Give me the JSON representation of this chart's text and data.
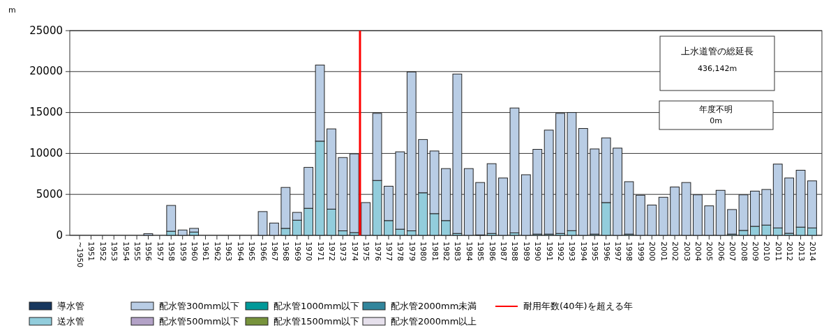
{
  "chart_data": {
    "type": "bar",
    "stacked": true,
    "ylabel": "m",
    "categories": [
      "~1950",
      "1951",
      "1952",
      "1953",
      "1954",
      "1955",
      "1956",
      "1957",
      "1958",
      "1959",
      "1960",
      "1961",
      "1962",
      "1963",
      "1964",
      "1965",
      "1966",
      "1967",
      "1968",
      "1969",
      "1970",
      "1971",
      "1972",
      "1973",
      "1974",
      "1975",
      "1976",
      "1977",
      "1978",
      "1979",
      "1980",
      "1981",
      "1982",
      "1983",
      "1984",
      "1985",
      "1986",
      "1987",
      "1988",
      "1989",
      "1990",
      "1991",
      "1992",
      "1993",
      "1994",
      "1995",
      "1996",
      "1997",
      "1998",
      "1999",
      "2000",
      "2001",
      "2002",
      "2003",
      "2004",
      "2005",
      "2006",
      "2007",
      "2008",
      "2009",
      "2010",
      "2011",
      "2012",
      "2013",
      "2014"
    ],
    "series": [
      {
        "name": "導水管",
        "color": "#17375e",
        "values": [
          0,
          0,
          0,
          0,
          0,
          0,
          0,
          0,
          0,
          0,
          0,
          0,
          0,
          0,
          0,
          0,
          0,
          0,
          0,
          0,
          0,
          0,
          0,
          0,
          0,
          0,
          0,
          0,
          0,
          0,
          0,
          0,
          0,
          0,
          0,
          0,
          0,
          0,
          0,
          0,
          0,
          0,
          0,
          0,
          0,
          0,
          0,
          0,
          0,
          0,
          0,
          0,
          0,
          0,
          0,
          0,
          0,
          0,
          0,
          0,
          0,
          0,
          0,
          0,
          0
        ]
      },
      {
        "name": "送水管",
        "color": "#92cddc",
        "values": [
          0,
          0,
          0,
          0,
          0,
          0,
          0,
          0,
          500,
          0,
          400,
          0,
          0,
          0,
          0,
          0,
          0,
          0,
          850,
          1850,
          3300,
          11500,
          3200,
          550,
          330,
          0,
          6700,
          1800,
          750,
          550,
          5200,
          2650,
          1800,
          230,
          0,
          50,
          230,
          0,
          300,
          0,
          150,
          150,
          230,
          570,
          0,
          150,
          4000,
          0,
          150,
          0,
          0,
          0,
          0,
          0,
          0,
          0,
          0,
          150,
          600,
          1100,
          1250,
          900,
          250,
          1000,
          900
        ]
      },
      {
        "name": "配水管300mm以下",
        "color": "#b9cde5",
        "values": [
          0,
          0,
          0,
          0,
          0,
          0,
          200,
          0,
          3150,
          650,
          450,
          0,
          0,
          0,
          0,
          0,
          2900,
          1500,
          5000,
          950,
          5000,
          9300,
          9800,
          8950,
          9620,
          4000,
          8200,
          4200,
          9450,
          19400,
          6500,
          7650,
          6350,
          19470,
          8150,
          6400,
          8520,
          7000,
          15250,
          7400,
          10350,
          12700,
          14670,
          14430,
          13050,
          10400,
          7900,
          10650,
          6400,
          4900,
          3700,
          4650,
          5900,
          6450,
          4950,
          3600,
          5500,
          3000,
          4350,
          4300,
          4350,
          7800,
          6750,
          6950,
          5750
        ]
      },
      {
        "name": "配水管500mm以下",
        "color": "#b3a2c7",
        "values": [
          0,
          0,
          0,
          0,
          0,
          0,
          0,
          0,
          0,
          0,
          0,
          0,
          0,
          0,
          0,
          0,
          0,
          0,
          0,
          0,
          0,
          0,
          0,
          0,
          0,
          0,
          0,
          0,
          0,
          0,
          0,
          0,
          0,
          0,
          0,
          0,
          0,
          0,
          0,
          0,
          0,
          0,
          0,
          0,
          0,
          0,
          0,
          0,
          0,
          0,
          0,
          0,
          0,
          0,
          0,
          0,
          0,
          0,
          0,
          0,
          0,
          0,
          0,
          0,
          0
        ]
      },
      {
        "name": "配水管1000mm以下",
        "color": "#009999",
        "values": [
          0,
          0,
          0,
          0,
          0,
          0,
          0,
          0,
          0,
          0,
          0,
          0,
          0,
          0,
          0,
          0,
          0,
          0,
          0,
          0,
          0,
          0,
          0,
          0,
          0,
          0,
          0,
          0,
          0,
          0,
          0,
          0,
          0,
          0,
          0,
          0,
          0,
          0,
          0,
          0,
          0,
          0,
          0,
          0,
          0,
          0,
          0,
          0,
          0,
          0,
          0,
          0,
          0,
          0,
          0,
          0,
          0,
          0,
          0,
          0,
          0,
          0,
          0,
          0,
          0
        ]
      },
      {
        "name": "配水管1500mm以下",
        "color": "#77933c",
        "values": [
          0,
          0,
          0,
          0,
          0,
          0,
          0,
          0,
          0,
          0,
          0,
          0,
          0,
          0,
          0,
          0,
          0,
          0,
          0,
          0,
          0,
          0,
          0,
          0,
          0,
          0,
          0,
          0,
          0,
          0,
          0,
          0,
          0,
          0,
          0,
          0,
          0,
          0,
          0,
          0,
          0,
          0,
          0,
          0,
          0,
          0,
          0,
          0,
          0,
          0,
          0,
          0,
          0,
          0,
          0,
          0,
          0,
          0,
          0,
          0,
          0,
          0,
          0,
          0,
          0
        ]
      },
      {
        "name": "配水管2000mm未満",
        "color": "#31859c",
        "values": [
          0,
          0,
          0,
          0,
          0,
          0,
          0,
          0,
          0,
          0,
          0,
          0,
          0,
          0,
          0,
          0,
          0,
          0,
          0,
          0,
          0,
          0,
          0,
          0,
          0,
          0,
          0,
          0,
          0,
          0,
          0,
          0,
          0,
          0,
          0,
          0,
          0,
          0,
          0,
          0,
          0,
          0,
          0,
          0,
          0,
          0,
          0,
          0,
          0,
          0,
          0,
          0,
          0,
          0,
          0,
          0,
          0,
          0,
          0,
          0,
          0,
          0,
          0,
          0,
          0
        ]
      },
      {
        "name": "配水管2000mm以上",
        "color": "#e6e0ec",
        "values": [
          0,
          0,
          0,
          0,
          0,
          0,
          0,
          0,
          0,
          0,
          0,
          0,
          0,
          0,
          0,
          0,
          0,
          0,
          0,
          0,
          0,
          0,
          0,
          0,
          0,
          0,
          0,
          0,
          0,
          0,
          0,
          0,
          0,
          0,
          0,
          0,
          0,
          0,
          0,
          0,
          0,
          0,
          0,
          0,
          0,
          0,
          0,
          0,
          0,
          0,
          0,
          0,
          0,
          0,
          0,
          0,
          0,
          0,
          0,
          0,
          0,
          0,
          0,
          0,
          0
        ]
      }
    ],
    "ylim": [
      0,
      25000
    ],
    "yticks": [
      0,
      5000,
      10000,
      15000,
      20000,
      25000
    ],
    "grid": "y",
    "legend": "bottom",
    "ref_lines": [
      {
        "axis": "x",
        "value": "1975",
        "label": "耐用年数(40年)を超える年",
        "color": "#ff0000"
      }
    ],
    "annotations": [
      "上水道管の総延長",
      "436,142m",
      "年度不明",
      "0m"
    ]
  }
}
